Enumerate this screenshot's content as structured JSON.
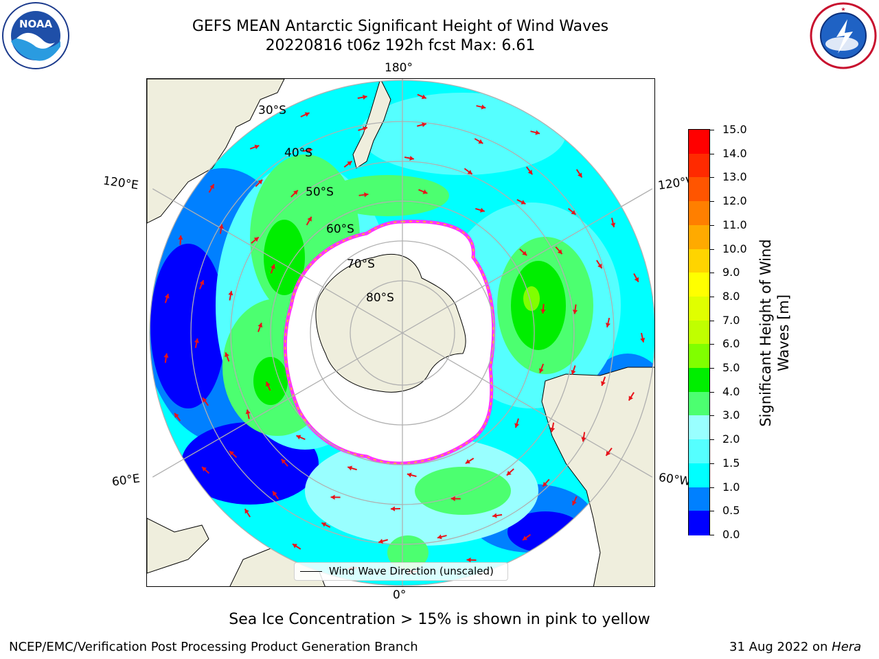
{
  "title": {
    "line1": "GEFS MEAN Antarctic Significant Height of Wind Waves",
    "line2": "20220816 t06z 192h fcst   Max: 6.61"
  },
  "logos": {
    "left": "noaa-logo",
    "right": "nws-logo"
  },
  "map": {
    "projection": "south-polar-stereographic",
    "longitude_labels": {
      "top": "180°",
      "bottom": "0°",
      "upper_left": "120°E",
      "lower_left": "60°E",
      "upper_right": "120°W",
      "lower_right": "60°W"
    },
    "latitude_labels": [
      "30°S",
      "40°S",
      "50°S",
      "60°S",
      "70°S",
      "80°S"
    ],
    "legend": "Wind Wave Direction (unscaled)",
    "colors": {
      "land": "#efeedd",
      "arrows": "#e8131a",
      "sea_ice_low": "#ff33ff",
      "sea_ice_high": "#ffd200",
      "grid": "#b0b0b0"
    }
  },
  "colorbar": {
    "label": "Significant Height of Wind Waves [m]",
    "label_line1": "Significant Height of Wind",
    "label_line2": "Waves [m]",
    "ticks": [
      "15.0",
      "14.0",
      "13.0",
      "12.0",
      "11.0",
      "10.0",
      "9.0",
      "8.0",
      "7.0",
      "6.0",
      "5.0",
      "4.0",
      "3.0",
      "2.0",
      "1.5",
      "1.0",
      "0.5",
      "0.0"
    ],
    "colors": [
      "#ff0000",
      "#ff2a00",
      "#ff5500",
      "#ff7f00",
      "#ffaa00",
      "#ffd400",
      "#ffff00",
      "#e0ff00",
      "#c0ff00",
      "#80ff00",
      "#00ee00",
      "#4cff70",
      "#99ffff",
      "#55ffff",
      "#00ffff",
      "#0080ff",
      "#0000ff"
    ]
  },
  "footnote": "Sea Ice Concentration > 15% is shown in pink to yellow",
  "credit": "NCEP/EMC/Verification Post Processing Product Generation Branch",
  "date": {
    "text": "31 Aug 2022 on ",
    "host": "Hera"
  }
}
